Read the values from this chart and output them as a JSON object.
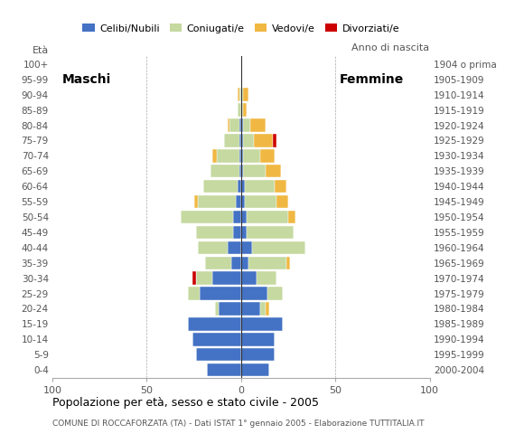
{
  "age_groups": [
    "0-4",
    "5-9",
    "10-14",
    "15-19",
    "20-24",
    "25-29",
    "30-34",
    "35-39",
    "40-44",
    "45-49",
    "50-54",
    "55-59",
    "60-64",
    "65-69",
    "70-74",
    "75-79",
    "80-84",
    "85-89",
    "90-94",
    "95-99",
    "100+"
  ],
  "birth_years": [
    "2000-2004",
    "1995-1999",
    "1990-1994",
    "1985-1989",
    "1980-1984",
    "1975-1979",
    "1970-1974",
    "1965-1969",
    "1960-1964",
    "1955-1959",
    "1950-1954",
    "1945-1949",
    "1940-1944",
    "1935-1939",
    "1930-1934",
    "1925-1929",
    "1920-1924",
    "1915-1919",
    "1910-1914",
    "1905-1909",
    "1904 o prima"
  ],
  "maschi": {
    "celibi": [
      18,
      24,
      26,
      28,
      12,
      22,
      15,
      5,
      7,
      4,
      4,
      3,
      2,
      1,
      1,
      1,
      1,
      0,
      0,
      0,
      0
    ],
    "coniugati": [
      0,
      0,
      0,
      0,
      2,
      6,
      9,
      14,
      16,
      20,
      28,
      20,
      18,
      15,
      12,
      8,
      5,
      2,
      1,
      0,
      0
    ],
    "vedovi": [
      0,
      0,
      0,
      0,
      0,
      0,
      0,
      0,
      0,
      0,
      0,
      2,
      0,
      0,
      2,
      0,
      1,
      0,
      1,
      0,
      0
    ],
    "divorziati": [
      0,
      0,
      0,
      0,
      0,
      0,
      2,
      0,
      0,
      0,
      0,
      0,
      0,
      0,
      0,
      0,
      0,
      0,
      0,
      0,
      0
    ]
  },
  "femmine": {
    "nubili": [
      15,
      18,
      18,
      22,
      10,
      14,
      8,
      4,
      6,
      3,
      3,
      2,
      2,
      1,
      1,
      1,
      1,
      0,
      0,
      0,
      0
    ],
    "coniugate": [
      0,
      0,
      0,
      0,
      3,
      8,
      11,
      20,
      28,
      25,
      22,
      17,
      16,
      12,
      9,
      6,
      4,
      1,
      1,
      0,
      0
    ],
    "vedove": [
      0,
      0,
      0,
      0,
      2,
      0,
      0,
      2,
      0,
      0,
      4,
      6,
      6,
      8,
      8,
      10,
      8,
      2,
      3,
      0,
      0
    ],
    "divorziate": [
      0,
      0,
      0,
      0,
      0,
      0,
      0,
      0,
      0,
      0,
      0,
      0,
      0,
      0,
      0,
      2,
      0,
      0,
      0,
      0,
      0
    ]
  },
  "colors": {
    "celibi": "#4472c4",
    "coniugati": "#c5d9a0",
    "vedovi": "#f0b842",
    "divorziati": "#cc0000"
  },
  "xlim": 100,
  "title": "Popolazione per età, sesso e stato civile - 2005",
  "subtitle": "COMUNE DI ROCCAFORZATA (TA) - Dati ISTAT 1° gennaio 2005 - Elaborazione TUTTITALIA.IT",
  "ylabel_left": "Età",
  "ylabel_right": "Anno di nascita",
  "legend_labels": [
    "Celibi/Nubili",
    "Coniugati/e",
    "Vedovi/e",
    "Divorziati/e"
  ],
  "maschi_label": "Maschi",
  "femmine_label": "Femmine"
}
